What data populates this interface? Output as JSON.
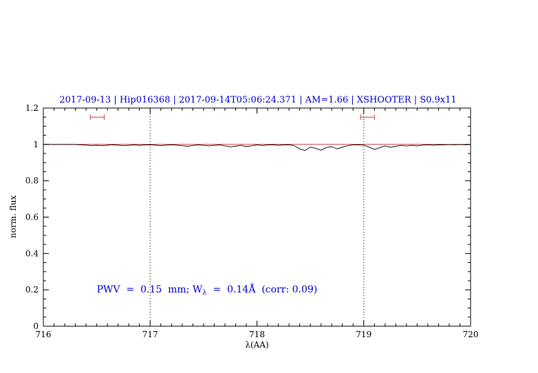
{
  "chart_data": {
    "type": "line",
    "title": "2017-09-13 | Hip016368 | 2017-09-14T05:06:24.371 | AM=1.66 | XSHOOTER | S0.9x11",
    "title_color": "#0000cc",
    "xlabel": "λ(AA)",
    "ylabel": "norm. flux",
    "xlim": [
      716,
      720
    ],
    "ylim": [
      0,
      1.2
    ],
    "grid": "dotted vertical lines at band edges",
    "legend": "none",
    "x_ticks": {
      "values": [
        716,
        717,
        718,
        719,
        720
      ],
      "labels": [
        "716",
        "717",
        "718",
        "719",
        "720"
      ],
      "minor_step": 0.1
    },
    "y_ticks": {
      "values": [
        0,
        0.2,
        0.4,
        0.6,
        0.8,
        1,
        1.2
      ],
      "labels": [
        "0",
        "0.2",
        "0.4",
        "0.6",
        "0.8",
        "1",
        "1.2"
      ],
      "minor_step": 0.05
    },
    "dotted_vlines": [
      717,
      719
    ],
    "continuum": {
      "y": 1.0,
      "color": "#bb2222"
    },
    "band_markers": [
      {
        "x1": 716.44,
        "x2": 716.57,
        "y": 1.15,
        "color": "#cc4444"
      },
      {
        "x1": 718.97,
        "x2": 719.1,
        "y": 1.15,
        "color": "#cc4444"
      }
    ],
    "annotation": {
      "pre": "PWV  =  0.15  mm; W",
      "sub": "λ",
      "post": "  =  0.14Å  (corr: 0.09)",
      "x": 716.5,
      "y": 0.2,
      "color": "#0000cc"
    },
    "series": [
      {
        "name": "telluric spectrum",
        "color": "#000000",
        "x": [
          716.0,
          716.05,
          716.1,
          716.15,
          716.2,
          716.25,
          716.3,
          716.35,
          716.4,
          716.45,
          716.5,
          716.55,
          716.6,
          716.65,
          716.7,
          716.75,
          716.8,
          716.85,
          716.9,
          716.95,
          717.0,
          717.05,
          717.1,
          717.15,
          717.2,
          717.25,
          717.3,
          717.35,
          717.4,
          717.45,
          717.5,
          717.55,
          717.6,
          717.65,
          717.7,
          717.75,
          717.8,
          717.85,
          717.9,
          717.95,
          718.0,
          718.05,
          718.1,
          718.15,
          718.2,
          718.25,
          718.3,
          718.35,
          718.4,
          718.45,
          718.5,
          718.55,
          718.6,
          718.65,
          718.7,
          718.75,
          718.8,
          718.85,
          718.9,
          718.95,
          719.0,
          719.05,
          719.1,
          719.15,
          719.2,
          719.25,
          719.3,
          719.35,
          719.4,
          719.45,
          719.5,
          719.55,
          719.6,
          719.65,
          719.7,
          719.75,
          719.8,
          719.85,
          719.9,
          719.95,
          720.0
        ],
        "y": [
          1.0,
          1.0,
          0.999,
          1.0,
          0.999,
          1.0,
          0.999,
          0.998,
          0.996,
          0.994,
          0.995,
          0.993,
          0.996,
          0.998,
          0.996,
          0.993,
          0.995,
          0.997,
          0.995,
          0.997,
          0.998,
          0.996,
          0.993,
          0.996,
          0.998,
          0.996,
          0.993,
          0.99,
          0.994,
          0.997,
          0.995,
          0.992,
          0.995,
          0.997,
          0.992,
          0.987,
          0.99,
          0.995,
          0.988,
          0.992,
          0.997,
          0.994,
          0.997,
          0.998,
          0.995,
          0.997,
          0.998,
          0.993,
          0.975,
          0.967,
          0.985,
          0.978,
          0.968,
          0.983,
          0.988,
          0.975,
          0.985,
          0.993,
          0.997,
          0.998,
          0.996,
          0.985,
          0.972,
          0.982,
          0.992,
          0.984,
          0.99,
          0.995,
          0.991,
          0.995,
          0.992,
          0.996,
          0.998,
          0.996,
          0.998,
          0.997,
          0.999,
          0.998,
          0.999,
          0.998,
          0.999
        ]
      }
    ]
  }
}
